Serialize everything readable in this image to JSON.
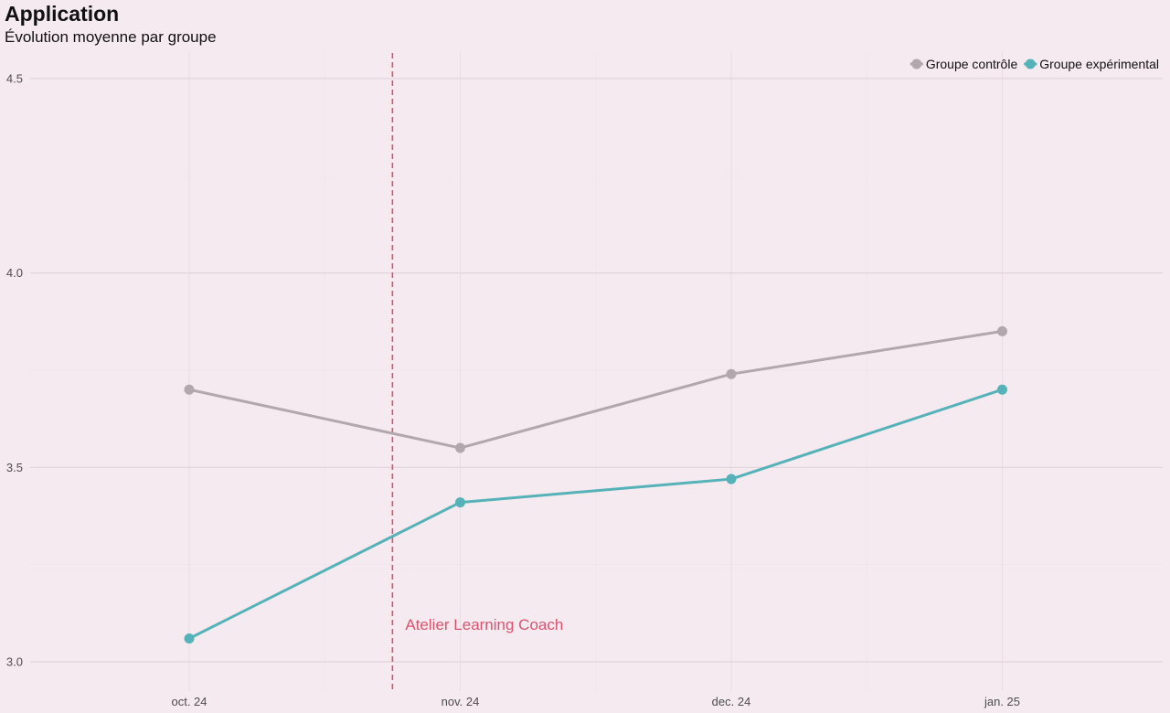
{
  "chart_data": {
    "type": "line",
    "title": "Application",
    "subtitle": "Évolution moyenne par groupe",
    "xlabel": "",
    "ylabel": "",
    "categories": [
      "oct. 24",
      "nov. 24",
      "dec. 24",
      "jan. 25"
    ],
    "ylim": [
      2.9,
      4.57
    ],
    "yticks": [
      3.0,
      3.5,
      4.0,
      4.5
    ],
    "ytick_labels": [
      "3.0",
      "3.5",
      "4.0",
      "4.5"
    ],
    "grid": true,
    "legend_position": "top-right",
    "series": [
      {
        "name": "Groupe contrôle",
        "color": "#b3a7ae",
        "values": [
          3.7,
          3.55,
          3.74,
          3.85
        ]
      },
      {
        "name": "Groupe expérimental",
        "color": "#54b2b8",
        "values": [
          3.06,
          3.41,
          3.47,
          3.7
        ]
      }
    ],
    "annotation": {
      "text": "Atelier Learning Coach",
      "x_position": 0.75,
      "line_style": "dashed",
      "color": "#d9536f"
    }
  }
}
